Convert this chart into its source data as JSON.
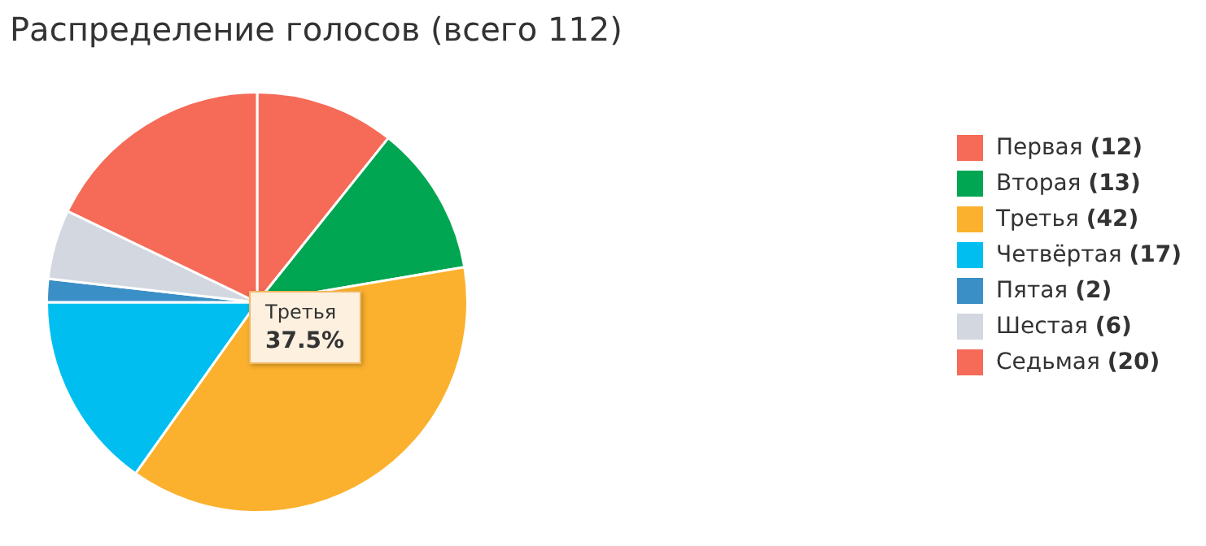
{
  "chart_data": {
    "type": "pie",
    "title": "Распределение голосов (всего 112)",
    "categories": [
      "Первая",
      "Вторая",
      "Третья",
      "Четвёртая",
      "Пятая",
      "Шестая",
      "Седьмая"
    ],
    "values": [
      12,
      13,
      42,
      17,
      2,
      6,
      20
    ],
    "value_labels": [
      "(12)",
      "(13)",
      "(42)",
      "(17)",
      "(2)",
      "(6)",
      "(20)"
    ],
    "colors": [
      "#f56b58",
      "#00a651",
      "#fbb12d",
      "#00bff0",
      "#3a8fc6",
      "#d3d8e0",
      "#f56b58"
    ],
    "legend": "right",
    "annotations": [
      "Третья",
      "37.5%"
    ]
  }
}
